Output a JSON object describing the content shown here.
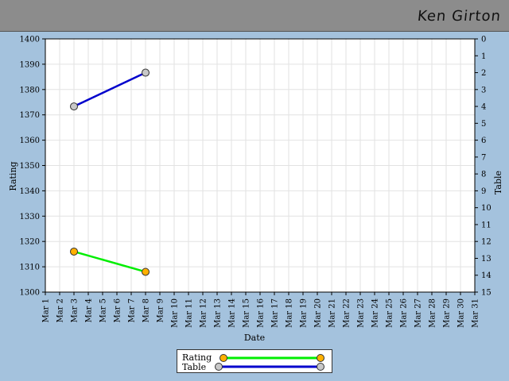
{
  "header": {
    "name": "Ken Girton"
  },
  "colors": {
    "background": "#a4c2dd",
    "header": "#8c8c8c",
    "rating_line": "#00ee00",
    "table_line": "#0000cc",
    "rating_marker": "#ffb000",
    "table_marker": "#c8c8c8"
  },
  "chart_data": {
    "type": "line",
    "xlabel": "Date",
    "ylabel": "Rating",
    "y2label": "Table",
    "categories": [
      "Mar 1",
      "Mar 2",
      "Mar 3",
      "Mar 4",
      "Mar 5",
      "Mar 6",
      "Mar 7",
      "Mar 8",
      "Mar 9",
      "Mar 10",
      "Mar 11",
      "Mar 12",
      "Mar 13",
      "Mar 14",
      "Mar 15",
      "Mar 16",
      "Mar 17",
      "Mar 18",
      "Mar 19",
      "Mar 20",
      "Mar 21",
      "Mar 22",
      "Mar 23",
      "Mar 24",
      "Mar 25",
      "Mar 26",
      "Mar 27",
      "Mar 28",
      "Mar 29",
      "Mar 30",
      "Mar 31"
    ],
    "ylim": [
      1300,
      1400
    ],
    "yticks": [
      "1300",
      "1310",
      "1320",
      "1330",
      "1340",
      "1350",
      "1360",
      "1370",
      "1380",
      "1390",
      "1400"
    ],
    "y2lim": [
      0,
      15
    ],
    "y2ticks": [
      "0",
      "1",
      "2",
      "3",
      "4",
      "5",
      "6",
      "7",
      "8",
      "9",
      "10",
      "11",
      "12",
      "13",
      "14",
      "15"
    ],
    "grid": true,
    "legend_position": "bottom",
    "series": [
      {
        "name": "Rating",
        "axis": "left",
        "points": [
          {
            "x": "Mar 3",
            "y": 1316
          },
          {
            "x": "Mar 8",
            "y": 1308
          }
        ]
      },
      {
        "name": "Table",
        "axis": "right",
        "points": [
          {
            "x": "Mar 3",
            "y": 4
          },
          {
            "x": "Mar 8",
            "y": 2
          }
        ]
      }
    ]
  }
}
